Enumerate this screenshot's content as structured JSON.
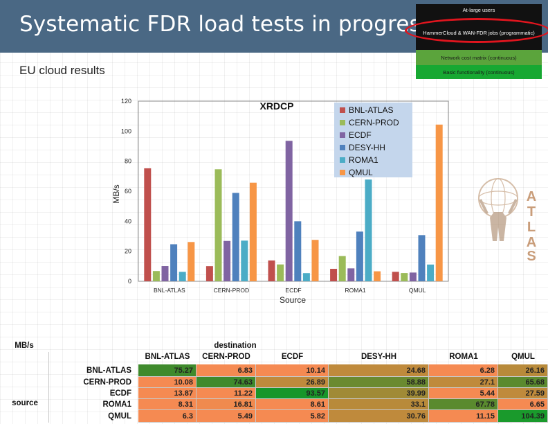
{
  "slide": {
    "title": "Systematic FDR load tests in progress",
    "subtitle": "EU cloud results"
  },
  "pyramid": {
    "levels": [
      "At-large users",
      "HammerCloud & WAN-FDR jobs (programmatic)",
      "Network cost matrix (continuous)",
      "Basic functionality (continuous)"
    ],
    "highlighted": "HammerCloud & WAN-FDR jobs (programmatic)",
    "highlight_color": "#e0151e"
  },
  "logo": {
    "letters": [
      "A",
      "T",
      "L",
      "A",
      "S"
    ]
  },
  "chart_data": {
    "type": "bar",
    "title": "XRDCP",
    "xlabel": "Source",
    "ylabel": "MB/s",
    "ylim": [
      0,
      120
    ],
    "yticks": [
      0,
      20,
      40,
      60,
      80,
      100,
      "120"
    ],
    "categories": [
      "BNL-ATLAS",
      "CERN-PROD",
      "ECDF",
      "ROMA1",
      "QMUL"
    ],
    "legend_position": "top-right",
    "series": [
      {
        "name": "BNL-ATLAS",
        "color": "#c0504d",
        "values": [
          75.27,
          10.08,
          13.87,
          8.31,
          6.3
        ]
      },
      {
        "name": "CERN-PROD",
        "color": "#9bbb59",
        "values": [
          6.83,
          74.63,
          11.22,
          16.81,
          5.49
        ]
      },
      {
        "name": "ECDF",
        "color": "#8064a2",
        "values": [
          10.14,
          26.89,
          93.57,
          8.61,
          5.82
        ]
      },
      {
        "name": "DESY-HH",
        "color": "#4f81bd",
        "values": [
          24.68,
          58.88,
          39.99,
          33.1,
          30.76
        ]
      },
      {
        "name": "ROMA1",
        "color": "#4bacc6",
        "values": [
          6.28,
          27.1,
          5.44,
          67.78,
          11.15
        ]
      },
      {
        "name": "QMUL",
        "color": "#f79646",
        "values": [
          26.16,
          65.68,
          27.59,
          6.65,
          104.39
        ]
      }
    ]
  },
  "table": {
    "unit_label": "MB/s",
    "destination_label": "destination",
    "source_label": "source",
    "columns": [
      "BNL-ATLAS",
      "CERN-PROD",
      "ECDF",
      "DESY-HH",
      "ROMA1",
      "QMUL"
    ],
    "rows": [
      {
        "source": "BNL-ATLAS",
        "values": [
          "75.27",
          "6.83",
          "10.14",
          "24.68",
          "6.28",
          "26.16"
        ]
      },
      {
        "source": "CERN-PROD",
        "values": [
          "10.08",
          "74.63",
          "26.89",
          "58.88",
          "27.1",
          "65.68"
        ]
      },
      {
        "source": "ECDF",
        "values": [
          "13.87",
          "11.22",
          "93.57",
          "39.99",
          "5.44",
          "27.59"
        ]
      },
      {
        "source": "ROMA1",
        "values": [
          "8.31",
          "16.81",
          "8.61",
          "33.1",
          "67.78",
          "6.65"
        ]
      },
      {
        "source": "QMUL",
        "values": [
          "6.3",
          "5.49",
          "5.82",
          "30.76",
          "11.15",
          "104.39"
        ]
      }
    ],
    "cell_colors": [
      [
        "#3f8a2c",
        "#f58a52",
        "#f58a52",
        "#bf8a3c",
        "#f58a52",
        "#b88a3a"
      ],
      [
        "#f58a52",
        "#3f8a2c",
        "#bf8a3c",
        "#6a8a30",
        "#bf8a3c",
        "#5a8a2e"
      ],
      [
        "#f58a52",
        "#f58a52",
        "#18962a",
        "#a08a36",
        "#f58a52",
        "#bf8a3c"
      ],
      [
        "#f58a52",
        "#f08a4e",
        "#f58a52",
        "#b88a3a",
        "#5a8a2e",
        "#f58a52"
      ],
      [
        "#f58a52",
        "#f58a52",
        "#f58a52",
        "#bf8a3c",
        "#f58a52",
        "#1a9a2c"
      ]
    ]
  }
}
